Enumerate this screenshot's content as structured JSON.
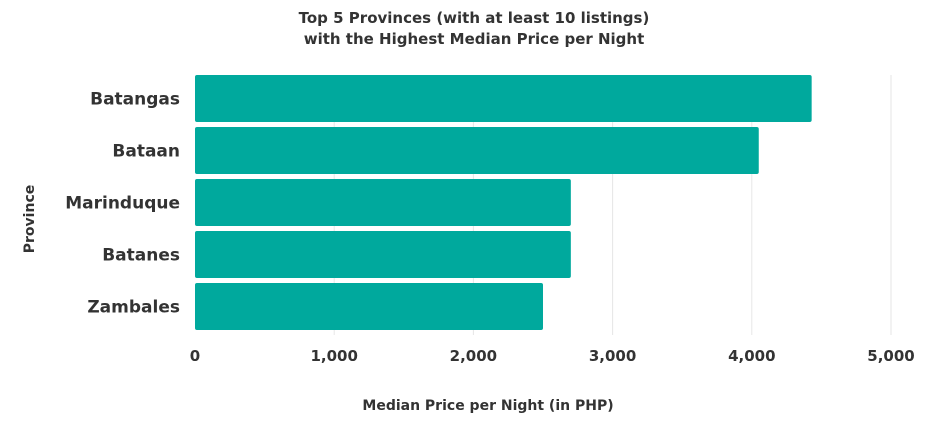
{
  "chart_data": {
    "type": "bar",
    "orientation": "horizontal",
    "title_lines": [
      "Top 5 Provinces (with at least 10 listings)",
      "with the Highest Median Price per Night"
    ],
    "xlabel": "Median Price per Night (in PHP)",
    "ylabel": "Province",
    "categories": [
      "Batangas",
      "Bataan",
      "Marinduque",
      "Batanes",
      "Zambales"
    ],
    "values": [
      4430,
      4050,
      2700,
      2700,
      2500
    ],
    "xlim": [
      0,
      5000
    ],
    "x_ticks": [
      0,
      1000,
      2000,
      3000,
      4000,
      5000
    ],
    "x_tick_labels": [
      "0",
      "1,000",
      "2,000",
      "3,000",
      "4,000",
      "5,000"
    ],
    "grid": "vertical",
    "legend": "none",
    "colors": {
      "bar": "#00A99D",
      "grid": "#e6e6e6",
      "text": "#333333"
    }
  }
}
